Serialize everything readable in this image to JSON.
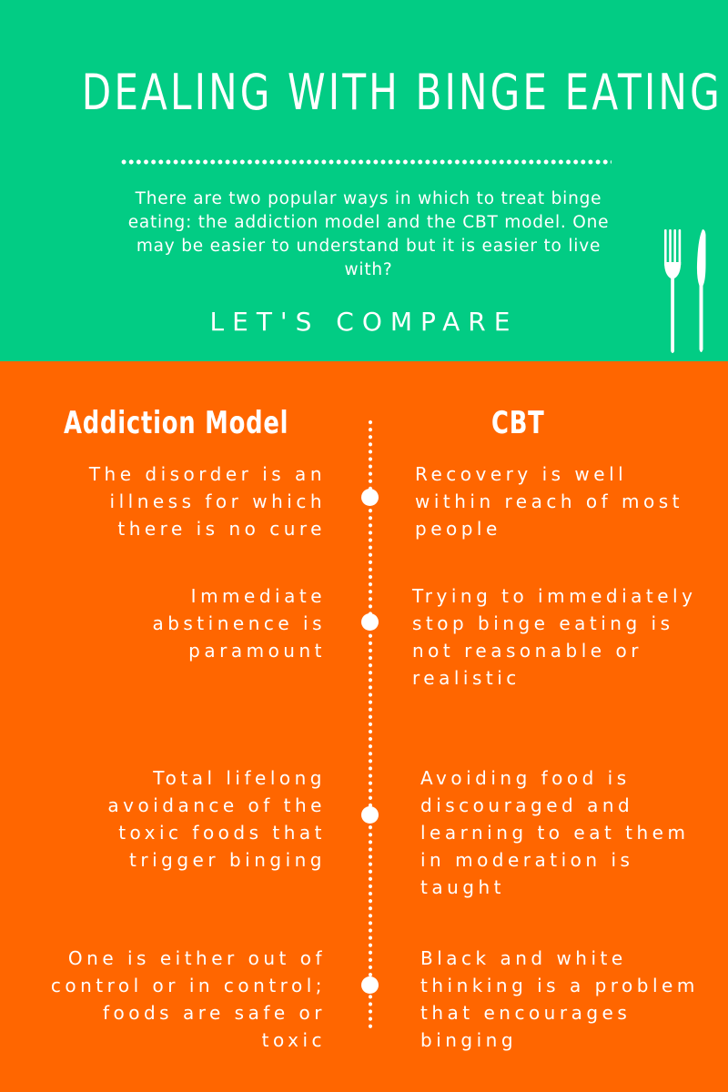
{
  "header": {
    "title": "DEALING WITH BINGE EATING",
    "intro": "There are two popular ways in which to treat binge eating: the addiction model and the CBT model. One may be easier to understand but it is easier to live with?",
    "compare_label": "LET'S COMPARE",
    "background_color": "#02cc84",
    "icon": "fork-and-knife-icon"
  },
  "comparison": {
    "background_color": "#ff6600",
    "left_heading": "Addiction Model",
    "right_heading": "CBT",
    "rows": [
      {
        "left": "The disorder is an illness for which there is no cure",
        "right": "Recovery is well within reach of most people"
      },
      {
        "left": "Immediate abstinence is paramount",
        "right": "Trying to immediately stop binge eating is not reasonable or realistic"
      },
      {
        "left": "Total lifelong avoidance of the toxic foods that trigger binging",
        "right": "Avoiding food is discouraged and learning to eat them in moderation is taught"
      },
      {
        "left": "One is either out of control or in control; foods are safe or toxic",
        "right": "Black and white thinking is a problem that encourages binging"
      }
    ]
  }
}
